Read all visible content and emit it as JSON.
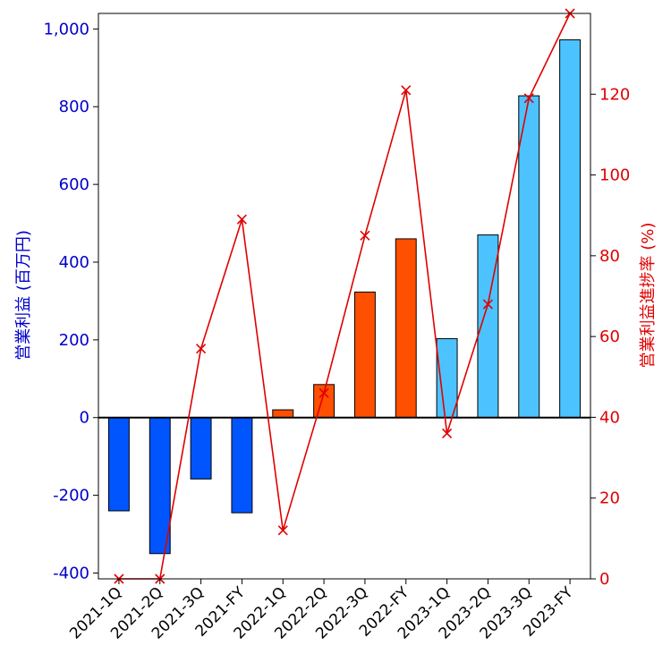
{
  "chart_data": {
    "type": "bar",
    "categories": [
      "2021-1Q",
      "2021-2Q",
      "2021-3Q",
      "2021-FY",
      "2022-1Q",
      "2022-2Q",
      "2022-3Q",
      "2022-FY",
      "2023-1Q",
      "2023-2Q",
      "2023-3Q",
      "2023-FY"
    ],
    "ylabel": "営業利益 (百万円)",
    "ylabel_right": "営業利益進捗率 (%)",
    "ylim": [
      -415,
      1040
    ],
    "ylim_right": [
      0,
      140
    ],
    "yticks": [
      -400,
      -200,
      0,
      200,
      400,
      600,
      800,
      1000
    ],
    "ytick_labels": [
      "-400",
      "-200",
      "0",
      "200",
      "400",
      "600",
      "800",
      "1,000"
    ],
    "yticks_right": [
      0,
      20,
      40,
      60,
      80,
      100,
      120
    ],
    "ytick_labels_right": [
      "0",
      "20",
      "40",
      "60",
      "80",
      "100",
      "120"
    ],
    "grid": false,
    "series": [
      {
        "type": "bar",
        "axis": "left",
        "values": [
          -240,
          -350,
          -158,
          -245,
          20,
          85,
          323,
          460,
          203,
          470,
          828,
          972
        ],
        "colors": [
          "#0055ff",
          "#0055ff",
          "#0055ff",
          "#0055ff",
          "#ff4f00",
          "#ff4f00",
          "#ff4f00",
          "#ff4f00",
          "#4cc3ff",
          "#4cc3ff",
          "#4cc3ff",
          "#4cc3ff"
        ]
      },
      {
        "type": "line",
        "axis": "right",
        "marker": "x",
        "color": "#e00000",
        "values": [
          0,
          0,
          57,
          89,
          12,
          46,
          85,
          121,
          36,
          68,
          119,
          140
        ]
      }
    ],
    "zero_line": true
  },
  "colors": {
    "left_axis": "#0000cc",
    "right_axis": "#e00000",
    "q_2021": "#0055ff",
    "q_2022": "#ff4f00",
    "q_2023": "#4cc3ff",
    "progress_line": "#e00000"
  }
}
